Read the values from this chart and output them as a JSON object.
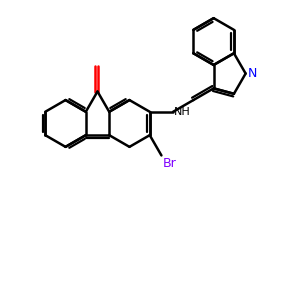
{
  "bg_color": "#ffffff",
  "bond_color": "#000000",
  "o_color": "#ff0000",
  "n_color": "#0000ff",
  "br_color": "#7f00ff",
  "lw": 1.8,
  "lw_inner": 1.6,
  "figsize": [
    3.0,
    3.0
  ],
  "dpi": 100,
  "xlim": [
    0,
    10
  ],
  "ylim": [
    0,
    10
  ]
}
